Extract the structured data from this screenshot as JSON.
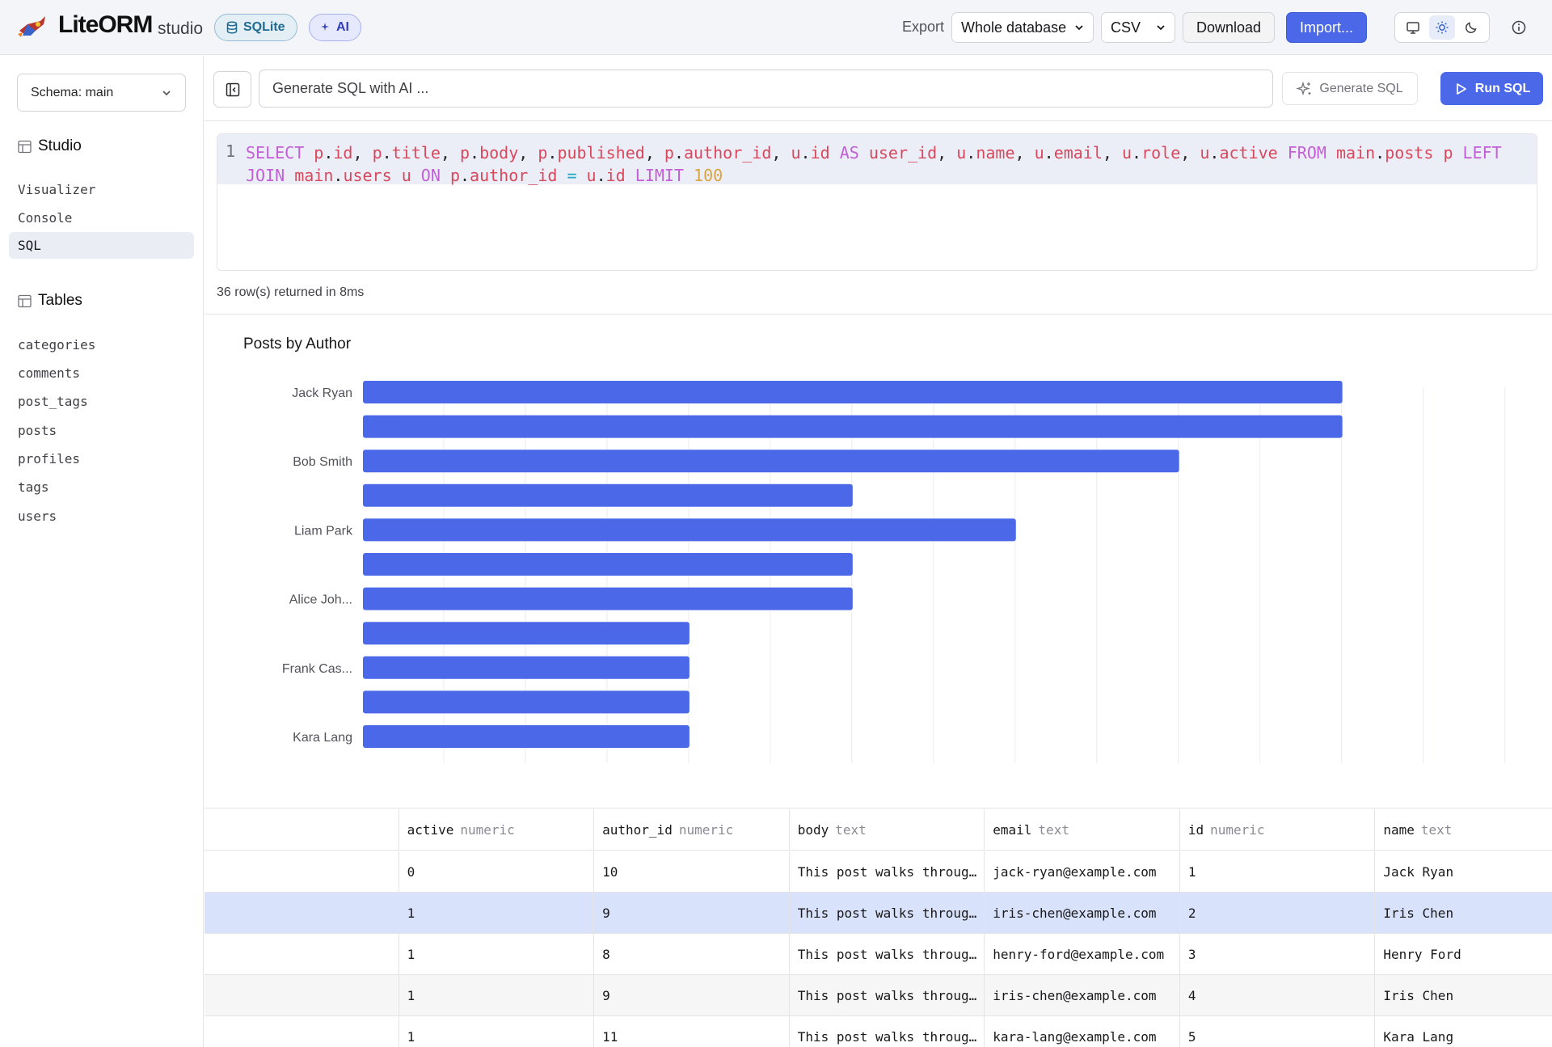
{
  "app": {
    "brand": "LiteORM",
    "brand_sub": "studio",
    "badge_db": "SQLite",
    "badge_ai": "AI"
  },
  "export": {
    "label": "Export",
    "scope": "Whole database",
    "format": "CSV",
    "download_label": "Download",
    "import_label": "Import..."
  },
  "sidebar": {
    "schema_select": {
      "prefix": "Schema:",
      "value": "main"
    },
    "studio_heading": "Studio",
    "studio_items": [
      {
        "label": "Visualizer",
        "active": false
      },
      {
        "label": "Console",
        "active": false
      },
      {
        "label": "SQL",
        "active": true
      }
    ],
    "tables_heading": "Tables",
    "tables": [
      "categories",
      "comments",
      "post_tags",
      "posts",
      "profiles",
      "tags",
      "users"
    ]
  },
  "toolbar": {
    "ai_placeholder": "Generate SQL with AI ...",
    "generate_label": "Generate SQL",
    "run_label": "Run SQL"
  },
  "editor": {
    "line_number": "1",
    "query": "SELECT p.id, p.title, p.body, p.published, p.author_id, u.id AS user_id, u.name, u.email, u.role, u.active FROM main.posts p LEFT JOIN main.users u ON p.author_id = u.id LIMIT 100"
  },
  "status": "36 row(s) returned in 8ms",
  "chart_data": {
    "type": "bar",
    "orientation": "horizontal",
    "title": "Posts by Author",
    "categories": [
      "Jack Ryan",
      "",
      "Bob Smith",
      "",
      "Liam Park",
      "",
      "Alice Joh...",
      "",
      "Frank Cas...",
      "",
      "Kara Lang"
    ],
    "values": [
      6,
      6,
      5,
      3,
      4,
      3,
      3,
      2,
      2,
      2,
      2
    ],
    "xlim": [
      0,
      7
    ],
    "grid": true,
    "color": "#4a68e8"
  },
  "grid": {
    "columns": [
      {
        "name": "",
        "type": ""
      },
      {
        "name": "active",
        "type": "numeric"
      },
      {
        "name": "author_id",
        "type": "numeric"
      },
      {
        "name": "body",
        "type": "text"
      },
      {
        "name": "email",
        "type": "text"
      },
      {
        "name": "id",
        "type": "numeric"
      },
      {
        "name": "name",
        "type": "text"
      }
    ],
    "rows": [
      [
        "",
        "0",
        "10",
        "This post walks throug…",
        "jack-ryan@example.com",
        "1",
        "Jack Ryan"
      ],
      [
        "",
        "1",
        "9",
        "This post walks throug…",
        "iris-chen@example.com",
        "2",
        "Iris Chen"
      ],
      [
        "",
        "1",
        "8",
        "This post walks throug…",
        "henry-ford@example.com",
        "3",
        "Henry Ford"
      ],
      [
        "",
        "1",
        "9",
        "This post walks throug…",
        "iris-chen@example.com",
        "4",
        "Iris Chen"
      ],
      [
        "",
        "1",
        "11",
        "This post walks throug…",
        "kara-lang@example.com",
        "5",
        "Kara Lang"
      ]
    ],
    "selected_row": 1
  }
}
